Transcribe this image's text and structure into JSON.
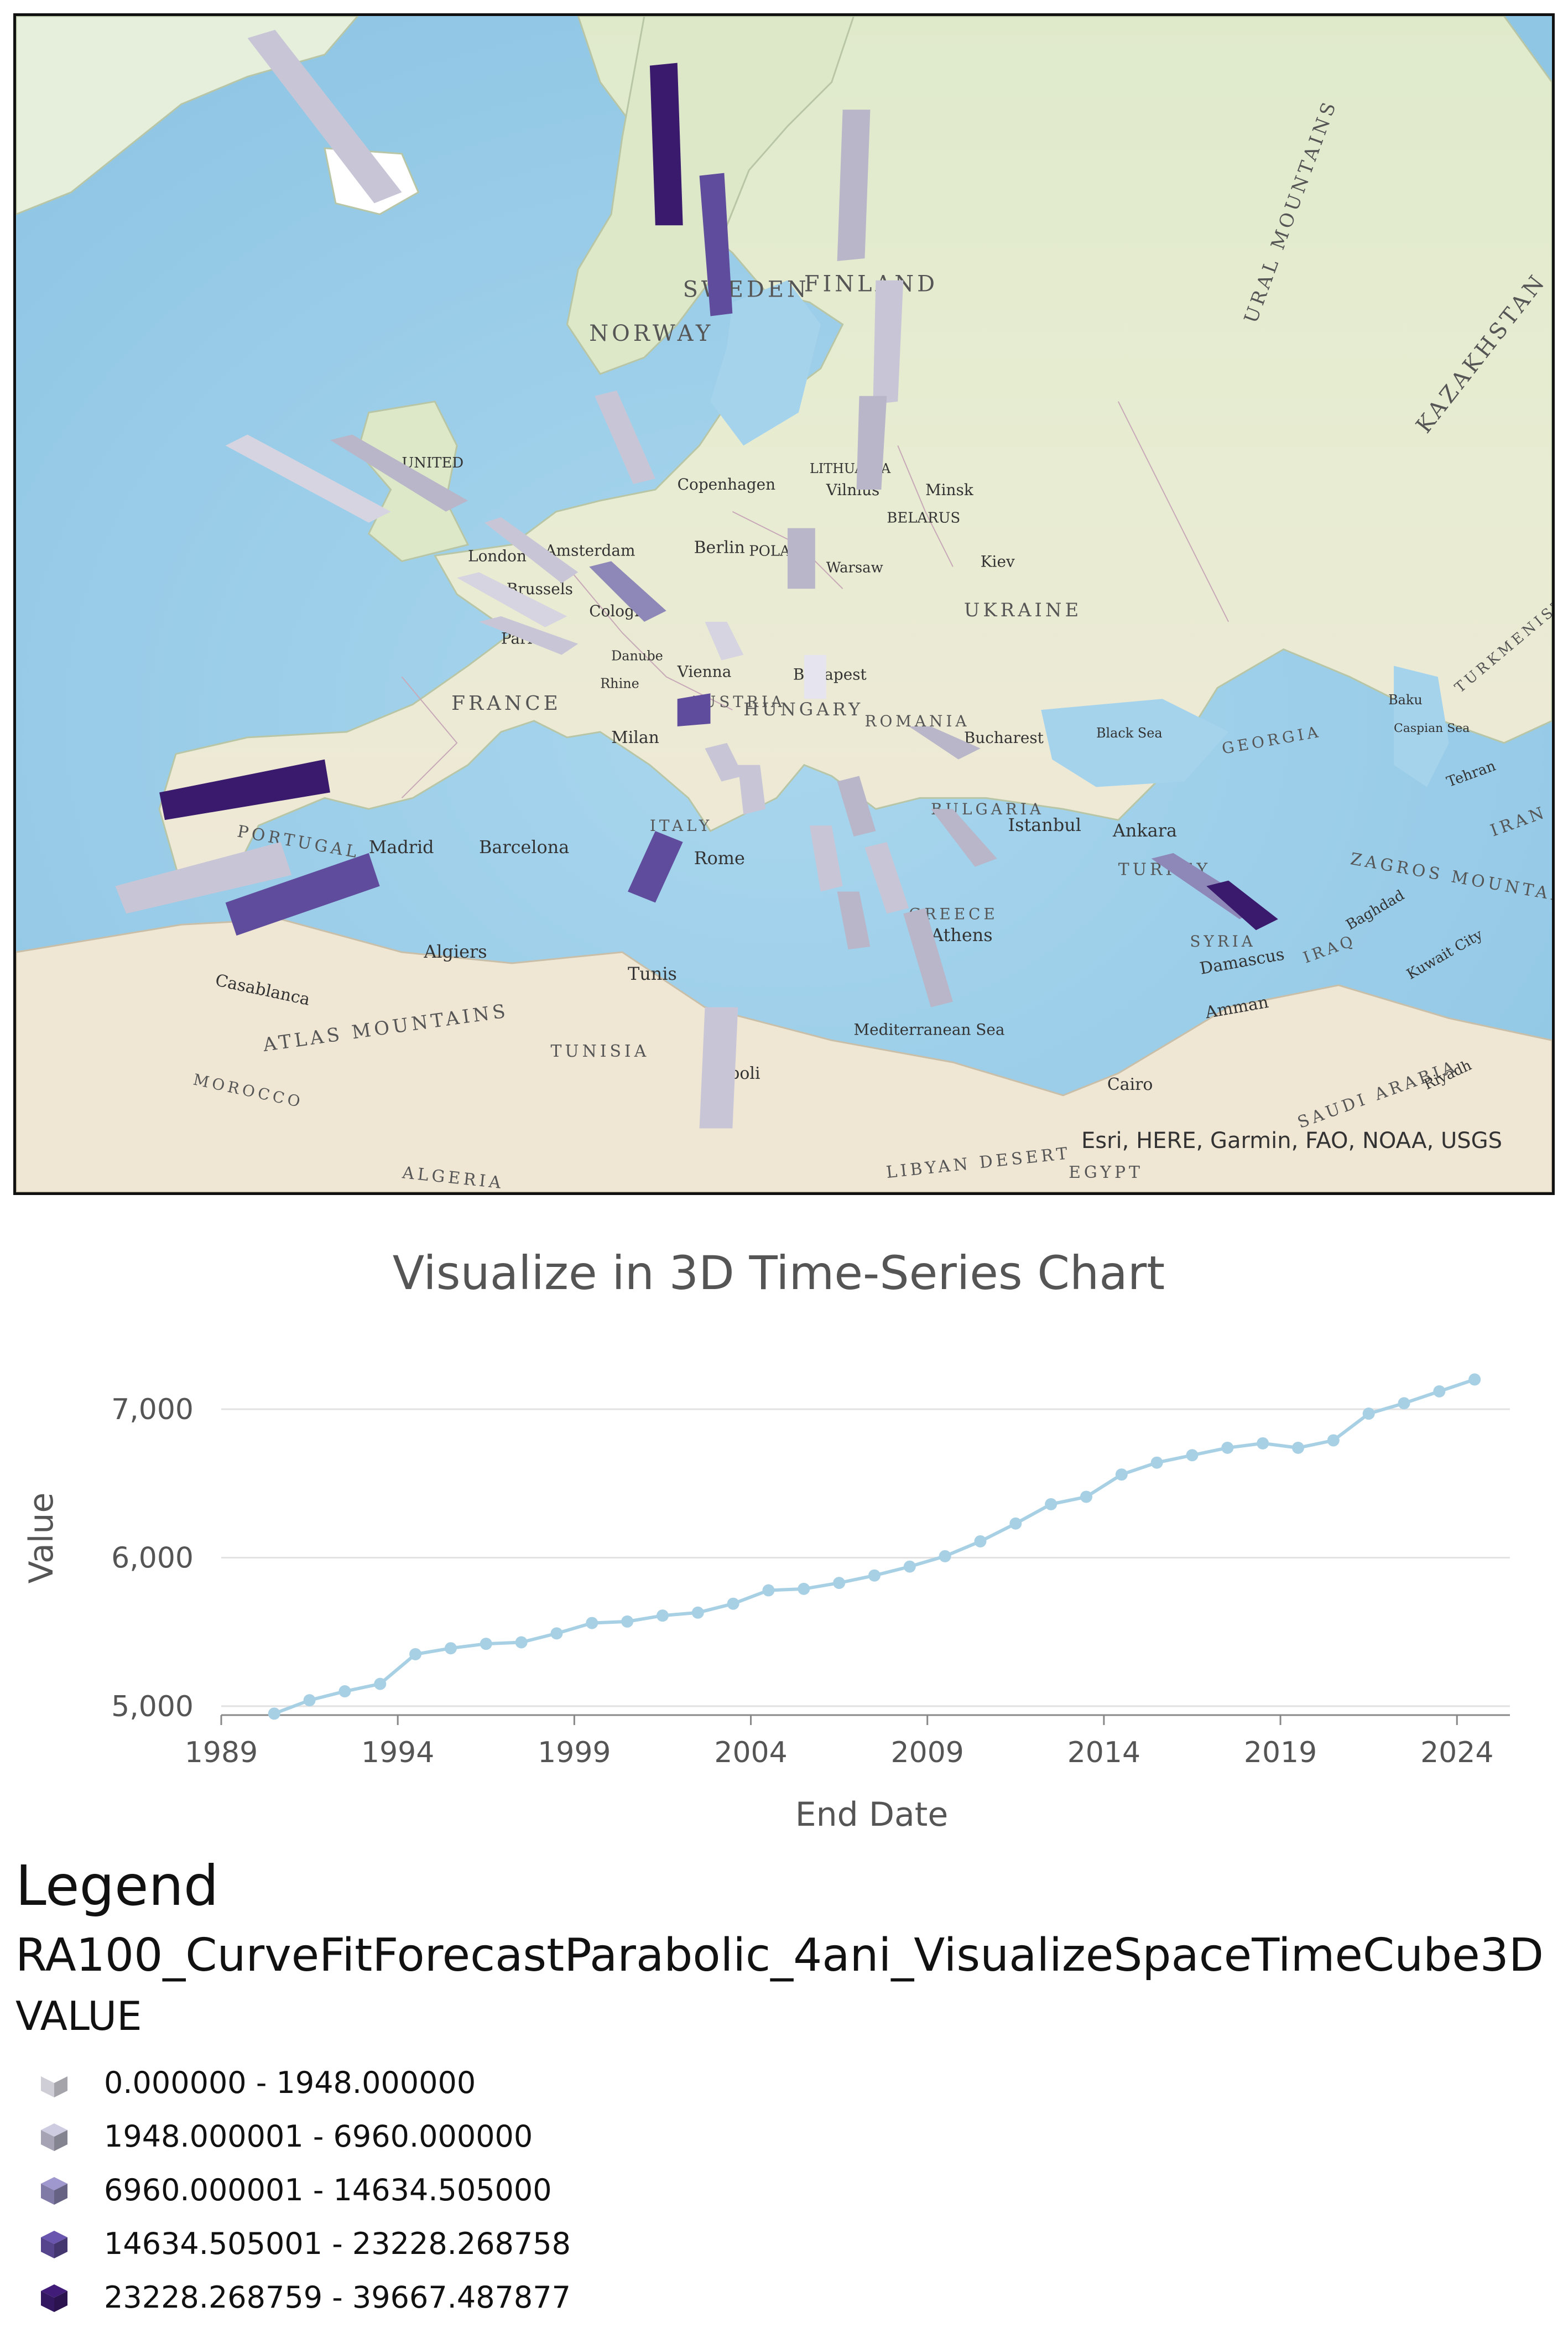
{
  "map": {
    "attribution": "Esri, HERE, Garmin, FAO, NOAA, USGS",
    "labels": {
      "sweden": "SWEDEN",
      "finland": "FINLAND",
      "norway": "NORWAY",
      "ural": "URAL MOUNTAINS",
      "kazakhstan": "KAZAKHSTAN",
      "united": "UNITED",
      "copenhagen": "Copenhagen",
      "lithuania": "LITHUANIA",
      "vilnius": "Vilnius",
      "minsk": "Minsk",
      "belarus": "BELARUS",
      "amsterdam": "Amsterdam",
      "berlin": "Berlin",
      "poland": "POLAND",
      "warsaw": "Warsaw",
      "london": "London",
      "brussels": "Brussels",
      "cologne": "Cologne",
      "kiev": "Kiev",
      "ukraine": "UKRAINE",
      "paris": "Paris",
      "danube": "Danube",
      "rhine": "Rhine",
      "vienna": "Vienna",
      "budapest": "Budapest",
      "hungary": "HUNGARY",
      "france": "FRANCE",
      "austria": "AUSTRIA",
      "romania": "ROMANIA",
      "bucharest": "Bucharest",
      "milan": "Milan",
      "black_sea": "Black Sea",
      "georgia": "GEORGIA",
      "baku": "Baku",
      "caspian": "Caspian Sea",
      "turkmenistan": "TURKMENISTAN",
      "portugal": "PORTUGAL",
      "madrid": "Madrid",
      "barcelona": "Barcelona",
      "italy": "ITALY",
      "rome": "Rome",
      "bulgaria": "BULGARIA",
      "istanbul": "Istanbul",
      "ankara": "Ankara",
      "turkey": "TURKEY",
      "tehran": "Tehran",
      "iran": "IRAN",
      "zagros": "ZAGROS MOUNTAINS",
      "greece": "GREECE",
      "athens": "Athens",
      "syria": "SYRIA",
      "damascus": "Damascus",
      "iraq": "IRAQ",
      "baghdad": "Baghdad",
      "kuwait": "Kuwait City",
      "algiers": "Algiers",
      "tunis": "Tunis",
      "casablanca": "Casablanca",
      "atlas": "ATLAS MOUNTAINS",
      "tunisia": "TUNISIA",
      "mediterranean": "Mediterranean Sea",
      "amman": "Amman",
      "morocco": "MOROCCO",
      "tripoli": "Tripoli",
      "cairo": "Cairo",
      "saudi": "SAUDI ARABIA",
      "riyadh": "Riyadh",
      "algeria": "ALGERIA",
      "libyan": "LIBYAN DESERT",
      "egypt": "EGYPT"
    }
  },
  "chart_data": {
    "type": "line",
    "title": "Visualize in 3D Time-Series Chart",
    "xlabel": "End Date",
    "ylabel": "Value",
    "xlim": [
      1989,
      2025.5
    ],
    "ylim": [
      4940,
      7250
    ],
    "xticks": [
      1989,
      1994,
      1999,
      2004,
      2009,
      2014,
      2019,
      2024
    ],
    "xtick_labels": [
      "1989",
      "1994",
      "1999",
      "2004",
      "2009",
      "2014",
      "2019",
      "2024"
    ],
    "yticks": [
      5000,
      6000,
      7000
    ],
    "ytick_labels": [
      "5,000",
      "6,000",
      "7,000"
    ],
    "grid": "horizontal",
    "legend": "none",
    "line_color": "#a8d0e4",
    "series": [
      {
        "x": [
          1990.5,
          1991.5,
          1992.5,
          1993.5,
          1994.5,
          1995.5,
          1996.5,
          1997.5,
          1998.5,
          1999.5,
          2000.5,
          2001.5,
          2002.5,
          2003.5,
          2004.5,
          2005.5,
          2006.5,
          2007.5,
          2008.5,
          2009.5,
          2010.5,
          2011.5,
          2012.5,
          2013.5,
          2014.5,
          2015.5,
          2016.5,
          2017.5,
          2018.5,
          2019.5,
          2020.5,
          2021.5,
          2022.5,
          2023.5,
          2024.5
        ],
        "values": [
          4950,
          5040,
          5100,
          5150,
          5350,
          5390,
          5420,
          5430,
          5490,
          5560,
          5570,
          5610,
          5630,
          5690,
          5780,
          5790,
          5830,
          5880,
          5940,
          6010,
          6110,
          6230,
          6360,
          6410,
          6560,
          6640,
          6690,
          6740,
          6770,
          6740,
          6790,
          6970,
          7040,
          7120,
          7200
        ]
      }
    ]
  },
  "legend": {
    "title": "Legend",
    "layer": "RA100_CurveFitForecastParabolic_4ani_VisualizeSpaceTimeCube3D",
    "field": "VALUE",
    "items": [
      {
        "label": "0.000000 - 1948.000000",
        "color": "#e6e4ee"
      },
      {
        "label": "1948.000001 - 6960.000000",
        "color": "#b8b6c8"
      },
      {
        "label": "6960.000001 - 14634.505000",
        "color": "#8e88b8"
      },
      {
        "label": "14634.505001 - 23228.268758",
        "color": "#5f4c9c"
      },
      {
        "label": "23228.268759 - 39667.487877",
        "color": "#3a1a6c"
      }
    ]
  }
}
